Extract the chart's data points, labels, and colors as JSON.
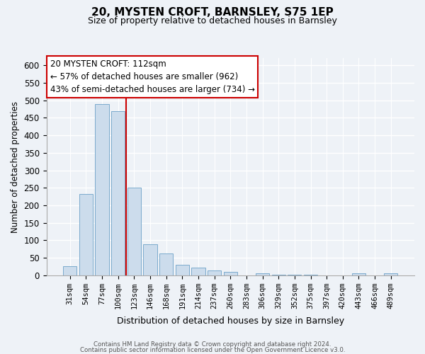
{
  "title": "20, MYSTEN CROFT, BARNSLEY, S75 1EP",
  "subtitle": "Size of property relative to detached houses in Barnsley",
  "xlabel": "Distribution of detached houses by size in Barnsley",
  "ylabel": "Number of detached properties",
  "bar_labels": [
    "31sqm",
    "54sqm",
    "77sqm",
    "100sqm",
    "123sqm",
    "146sqm",
    "168sqm",
    "191sqm",
    "214sqm",
    "237sqm",
    "260sqm",
    "283sqm",
    "306sqm",
    "329sqm",
    "352sqm",
    "375sqm",
    "397sqm",
    "420sqm",
    "443sqm",
    "466sqm",
    "489sqm"
  ],
  "bar_values": [
    25,
    233,
    490,
    470,
    250,
    88,
    63,
    30,
    22,
    13,
    10,
    0,
    5,
    2,
    1,
    1,
    0,
    0,
    5,
    0,
    5
  ],
  "bar_color": "#ccdcec",
  "bar_edge_color": "#7aaacc",
  "vline_x": 3.5,
  "vline_color": "#cc0000",
  "annotation_title": "20 MYSTEN CROFT: 112sqm",
  "annotation_line1": "← 57% of detached houses are smaller (962)",
  "annotation_line2": "43% of semi-detached houses are larger (734) →",
  "annotation_box_facecolor": "#ffffff",
  "annotation_box_edgecolor": "#cc0000",
  "ylim": [
    0,
    620
  ],
  "yticks": [
    0,
    50,
    100,
    150,
    200,
    250,
    300,
    350,
    400,
    450,
    500,
    550,
    600
  ],
  "footer_line1": "Contains HM Land Registry data © Crown copyright and database right 2024.",
  "footer_line2": "Contains public sector information licensed under the Open Government Licence v3.0.",
  "bg_color": "#eef2f7",
  "grid_color": "#ffffff"
}
